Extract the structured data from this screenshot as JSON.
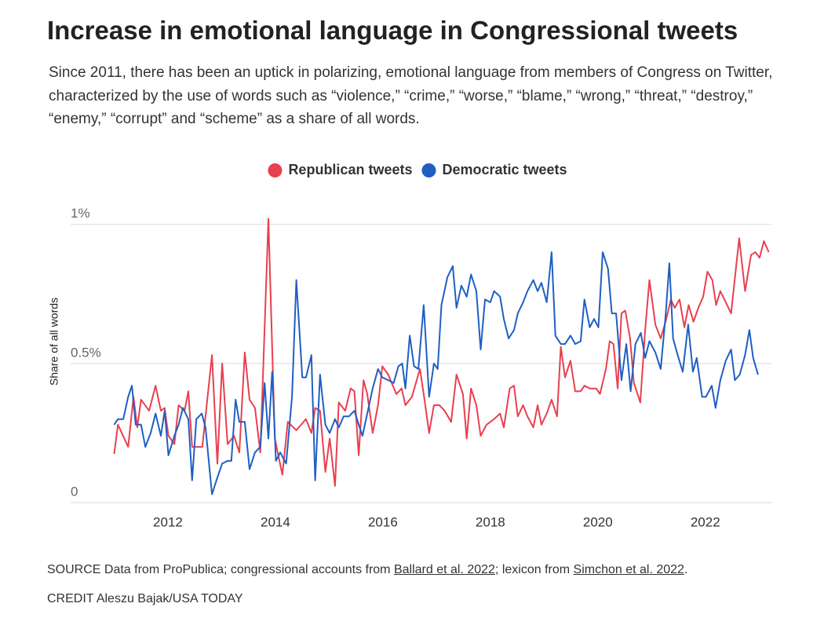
{
  "chart_data": {
    "type": "line",
    "title": "Increase in emotional language in Congressional tweets",
    "subtitle": "Since 2011, there has been an uptick in polarizing, emotional language from members of Congress on Twitter, characterized by the use of words such as “violence,” “crime,” “worse,” “blame,” “wrong,” “threat,” “destroy,” “enemy,” “corrupt” and “scheme” as a share of all words.",
    "y_axis_label": "Share of all words",
    "xlim": [
      2010.19,
      2023.23
    ],
    "xticks": [
      2012,
      2014,
      2016,
      2018,
      2020,
      2022
    ],
    "ylim": [
      0,
      1.05
    ],
    "yticks": [
      0,
      {
        "value": 0.5,
        "label": "0.5%"
      },
      {
        "value": 1,
        "label": "1%"
      }
    ],
    "grid": true,
    "legend": "top",
    "series": [
      {
        "name": "Republican tweets",
        "color": "#e8404f",
        "x": [
          2011.0,
          2011.07,
          2011.26,
          2011.36,
          2011.43,
          2011.5,
          2011.65,
          2011.77,
          2011.87,
          2011.94,
          2012.01,
          2012.12,
          2012.2,
          2012.31,
          2012.38,
          2012.45,
          2012.64,
          2012.82,
          2012.92,
          2013.01,
          2013.11,
          2013.23,
          2013.33,
          2013.43,
          2013.52,
          2013.62,
          2013.72,
          2013.87,
          2013.99,
          2014.13,
          2014.23,
          2014.39,
          2014.57,
          2014.67,
          2014.74,
          2014.83,
          2014.93,
          2015.01,
          2015.11,
          2015.18,
          2015.3,
          2015.4,
          2015.47,
          2015.55,
          2015.64,
          2015.71,
          2015.81,
          2015.91,
          2015.99,
          2016.1,
          2016.25,
          2016.35,
          2016.42,
          2016.54,
          2016.69,
          2016.76,
          2016.86,
          2016.95,
          2017.05,
          2017.15,
          2017.27,
          2017.37,
          2017.49,
          2017.56,
          2017.64,
          2017.74,
          2017.82,
          2017.93,
          2018.07,
          2018.18,
          2018.25,
          2018.36,
          2018.44,
          2018.51,
          2018.61,
          2018.69,
          2018.8,
          2018.88,
          2018.95,
          2019.05,
          2019.14,
          2019.24,
          2019.31,
          2019.39,
          2019.49,
          2019.58,
          2019.68,
          2019.75,
          2019.85,
          2019.97,
          2020.04,
          2020.15,
          2020.22,
          2020.29,
          2020.37,
          2020.44,
          2020.51,
          2020.6,
          2020.67,
          2020.79,
          2020.88,
          2020.96,
          2021.07,
          2021.17,
          2021.26,
          2021.36,
          2021.43,
          2021.52,
          2021.61,
          2021.69,
          2021.78,
          2021.87,
          2021.96,
          2022.04,
          2022.13,
          2022.2,
          2022.28,
          2022.38,
          2022.48,
          2022.63,
          2022.74,
          2022.85,
          2022.93,
          2023.01,
          2023.09,
          2023.18
        ],
        "values": [
          0.175,
          0.28,
          0.2,
          0.38,
          0.27,
          0.37,
          0.33,
          0.42,
          0.33,
          0.34,
          0.24,
          0.21,
          0.35,
          0.33,
          0.4,
          0.2,
          0.2,
          0.53,
          0.14,
          0.5,
          0.21,
          0.24,
          0.18,
          0.54,
          0.37,
          0.34,
          0.18,
          1.02,
          0.23,
          0.1,
          0.29,
          0.26,
          0.3,
          0.25,
          0.34,
          0.33,
          0.11,
          0.23,
          0.06,
          0.36,
          0.33,
          0.41,
          0.4,
          0.17,
          0.44,
          0.39,
          0.25,
          0.35,
          0.49,
          0.46,
          0.39,
          0.41,
          0.35,
          0.38,
          0.48,
          0.39,
          0.25,
          0.35,
          0.35,
          0.33,
          0.29,
          0.46,
          0.39,
          0.23,
          0.41,
          0.35,
          0.24,
          0.28,
          0.3,
          0.32,
          0.27,
          0.41,
          0.42,
          0.31,
          0.35,
          0.31,
          0.27,
          0.35,
          0.28,
          0.32,
          0.37,
          0.31,
          0.56,
          0.45,
          0.51,
          0.4,
          0.4,
          0.42,
          0.41,
          0.41,
          0.39,
          0.48,
          0.58,
          0.57,
          0.41,
          0.68,
          0.69,
          0.59,
          0.43,
          0.36,
          0.62,
          0.8,
          0.64,
          0.59,
          0.65,
          0.73,
          0.7,
          0.73,
          0.63,
          0.71,
          0.65,
          0.7,
          0.74,
          0.83,
          0.8,
          0.71,
          0.76,
          0.72,
          0.68,
          0.95,
          0.76,
          0.89,
          0.9,
          0.88,
          0.94,
          0.9
        ]
      },
      {
        "name": "Democratic tweets",
        "color": "#1f5fc4",
        "x": [
          2011.0,
          2011.07,
          2011.17,
          2011.26,
          2011.33,
          2011.4,
          2011.5,
          2011.58,
          2011.68,
          2011.77,
          2011.87,
          2011.94,
          2012.01,
          2012.12,
          2012.2,
          2012.28,
          2012.38,
          2012.45,
          2012.53,
          2012.63,
          2012.7,
          2012.82,
          2012.92,
          2013.01,
          2013.11,
          2013.18,
          2013.26,
          2013.33,
          2013.43,
          2013.52,
          2013.62,
          2013.72,
          2013.8,
          2013.87,
          2013.94,
          2014.01,
          2014.09,
          2014.2,
          2014.31,
          2014.39,
          2014.5,
          2014.57,
          2014.67,
          2014.74,
          2014.83,
          2014.93,
          2015.01,
          2015.11,
          2015.18,
          2015.27,
          2015.37,
          2015.47,
          2015.55,
          2015.62,
          2015.71,
          2015.81,
          2015.91,
          2015.99,
          2016.1,
          2016.2,
          2016.29,
          2016.36,
          2016.42,
          2016.5,
          2016.58,
          2016.66,
          2016.76,
          2016.86,
          2016.95,
          2017.02,
          2017.09,
          2017.2,
          2017.3,
          2017.37,
          2017.46,
          2017.56,
          2017.64,
          2017.74,
          2017.82,
          2017.9,
          2018.0,
          2018.07,
          2018.18,
          2018.25,
          2018.34,
          2018.44,
          2018.51,
          2018.61,
          2018.69,
          2018.8,
          2018.88,
          2018.95,
          2019.05,
          2019.14,
          2019.21,
          2019.31,
          2019.39,
          2019.49,
          2019.58,
          2019.68,
          2019.75,
          2019.85,
          2019.93,
          2020.01,
          2020.09,
          2020.19,
          2020.26,
          2020.34,
          2020.44,
          2020.53,
          2020.61,
          2020.7,
          2020.8,
          2020.88,
          2020.96,
          2021.07,
          2021.17,
          2021.26,
          2021.33,
          2021.4,
          2021.47,
          2021.58,
          2021.68,
          2021.77,
          2021.84,
          2021.94,
          2022.01,
          2022.12,
          2022.19,
          2022.28,
          2022.38,
          2022.48,
          2022.55,
          2022.64,
          2022.74,
          2022.82,
          2022.89,
          2022.98
        ],
        "values": [
          0.28,
          0.3,
          0.3,
          0.38,
          0.42,
          0.28,
          0.28,
          0.2,
          0.25,
          0.32,
          0.24,
          0.33,
          0.17,
          0.24,
          0.28,
          0.34,
          0.3,
          0.08,
          0.3,
          0.32,
          0.27,
          0.03,
          0.09,
          0.14,
          0.15,
          0.15,
          0.37,
          0.29,
          0.29,
          0.12,
          0.18,
          0.2,
          0.43,
          0.23,
          0.47,
          0.15,
          0.18,
          0.14,
          0.38,
          0.8,
          0.45,
          0.45,
          0.53,
          0.08,
          0.46,
          0.28,
          0.25,
          0.3,
          0.27,
          0.31,
          0.31,
          0.33,
          0.28,
          0.24,
          0.32,
          0.41,
          0.48,
          0.45,
          0.44,
          0.43,
          0.49,
          0.5,
          0.41,
          0.6,
          0.49,
          0.48,
          0.71,
          0.38,
          0.5,
          0.48,
          0.71,
          0.81,
          0.85,
          0.7,
          0.78,
          0.74,
          0.82,
          0.76,
          0.55,
          0.73,
          0.72,
          0.76,
          0.74,
          0.66,
          0.59,
          0.62,
          0.68,
          0.72,
          0.76,
          0.8,
          0.76,
          0.79,
          0.72,
          0.9,
          0.6,
          0.57,
          0.57,
          0.6,
          0.57,
          0.58,
          0.73,
          0.63,
          0.66,
          0.63,
          0.9,
          0.84,
          0.68,
          0.68,
          0.44,
          0.57,
          0.4,
          0.57,
          0.61,
          0.52,
          0.58,
          0.54,
          0.48,
          0.67,
          0.86,
          0.59,
          0.54,
          0.47,
          0.64,
          0.47,
          0.52,
          0.38,
          0.38,
          0.42,
          0.34,
          0.44,
          0.51,
          0.55,
          0.44,
          0.46,
          0.53,
          0.62,
          0.52,
          0.46
        ]
      }
    ]
  },
  "footer": {
    "source_prefix": "SOURCE Data from ProPublica; congressional accounts from ",
    "source_link_1": "Ballard et al. 2022",
    "source_middle": "; lexicon from ",
    "source_link_2": "Simchon et al. 2022",
    "source_end": ".",
    "credit": "CREDIT Aleszu Bajak/USA TODAY"
  }
}
